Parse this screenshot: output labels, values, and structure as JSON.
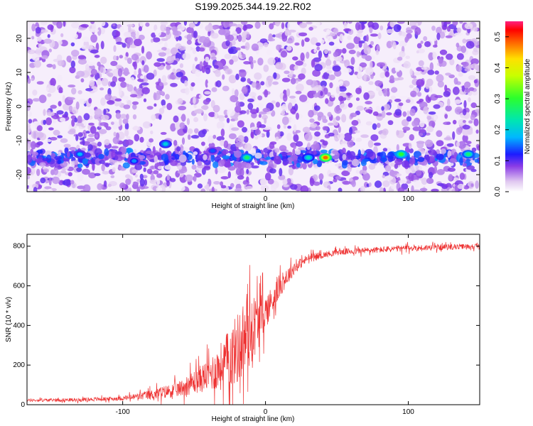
{
  "chart_data": [
    {
      "type": "heatmap",
      "title": "S199.2025.344.19.22.R02",
      "xlabel": "Height of straight line (km)",
      "ylabel": "Frequency (Hz)",
      "xlim": [
        -167,
        150
      ],
      "ylim": [
        -25,
        25
      ],
      "x_ticks": [
        -100,
        0,
        100
      ],
      "y_ticks": [
        -20,
        -10,
        0,
        10,
        20
      ],
      "colorbar": {
        "label": "Normalized spectral amplitude",
        "range": [
          0,
          0.55
        ],
        "ticks": [
          0.0,
          0.1,
          0.2,
          0.3,
          0.4,
          0.5
        ],
        "tick_labels": [
          "0.0",
          "0.1",
          "0.2",
          "0.3",
          "0.4",
          "0.5"
        ]
      },
      "band": {
        "frequency_center": -15,
        "frequency_halfwidth": 3
      },
      "peaks": [
        {
          "x": -130,
          "y": -14,
          "v": 0.18
        },
        {
          "x": -92,
          "y": -16,
          "v": 0.16
        },
        {
          "x": -70,
          "y": -11,
          "v": 0.2
        },
        {
          "x": -37,
          "y": -13,
          "v": 0.14
        },
        {
          "x": -13,
          "y": -15,
          "v": 0.27
        },
        {
          "x": 30,
          "y": -15,
          "v": 0.22
        },
        {
          "x": 42,
          "y": -15,
          "v": 0.48
        },
        {
          "x": 95,
          "y": -14,
          "v": 0.3
        },
        {
          "x": 142,
          "y": -14,
          "v": 0.26
        }
      ]
    },
    {
      "type": "line",
      "xlabel": "Height of straight line (km)",
      "ylabel": "SNR (10 * v/v)",
      "xlim": [
        -167,
        150
      ],
      "ylim": [
        0,
        860
      ],
      "x_ticks": [
        -100,
        0,
        100
      ],
      "y_ticks": [
        0,
        200,
        400,
        600,
        800
      ],
      "color": "#ee3333",
      "trend": {
        "x": [
          -167,
          -130,
          -100,
          -80,
          -60,
          -40,
          -30,
          -20,
          -10,
          0,
          5,
          10,
          20,
          30,
          50,
          100,
          150
        ],
        "y": [
          22,
          25,
          32,
          50,
          80,
          150,
          200,
          280,
          380,
          470,
          530,
          600,
          690,
          740,
          770,
          790,
          800
        ]
      },
      "noise": {
        "x": [
          -167,
          -100,
          -60,
          -40,
          -25,
          -15,
          -5,
          0,
          15,
          25,
          40,
          100,
          150
        ],
        "amplitude": [
          8,
          12,
          45,
          90,
          170,
          230,
          160,
          100,
          50,
          28,
          18,
          18,
          14
        ]
      }
    }
  ]
}
